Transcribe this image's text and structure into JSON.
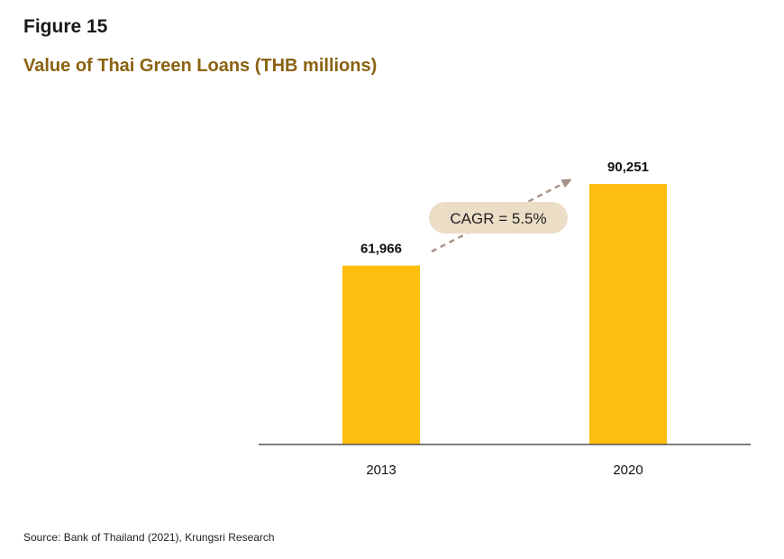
{
  "figure_label": "Figure 15",
  "title": "Value of Thai Green Loans (THB millions)",
  "source": "Source:  Bank of Thailand (2021), Krungsri Research",
  "colors": {
    "bar": "#FDBE0F",
    "title": "#8a6210",
    "axis": "#555555",
    "cagr_badge": "#ECDDC7",
    "arrow": "#A8938A"
  },
  "chart_data": {
    "type": "bar",
    "categories": [
      "2013",
      "2020"
    ],
    "values": [
      61966,
      90251
    ],
    "data_labels": [
      "61,966",
      "90,251"
    ],
    "title": "Value of Thai Green Loans (THB millions)",
    "xlabel": "",
    "ylabel": "",
    "ylim": [
      0,
      100000
    ],
    "grid": false,
    "annotation": "CAGR = 5.5%"
  }
}
